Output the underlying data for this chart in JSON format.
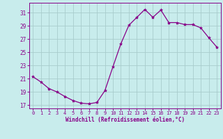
{
  "x": [
    0,
    1,
    2,
    3,
    4,
    5,
    6,
    7,
    8,
    9,
    10,
    11,
    12,
    13,
    14,
    15,
    16,
    17,
    18,
    19,
    20,
    21,
    22,
    23
  ],
  "y": [
    21.3,
    20.5,
    19.5,
    19.0,
    18.3,
    17.7,
    17.3,
    17.2,
    17.4,
    19.2,
    22.8,
    26.3,
    29.1,
    30.3,
    31.5,
    30.3,
    31.4,
    29.5,
    29.5,
    29.2,
    29.2,
    28.7,
    27.2,
    25.8
  ],
  "xlim": [
    -0.5,
    23.5
  ],
  "ylim": [
    16.5,
    32.5
  ],
  "yticks": [
    17,
    19,
    21,
    23,
    25,
    27,
    29,
    31
  ],
  "xticks": [
    0,
    1,
    2,
    3,
    4,
    5,
    6,
    7,
    8,
    9,
    10,
    11,
    12,
    13,
    14,
    15,
    16,
    17,
    18,
    19,
    20,
    21,
    22,
    23
  ],
  "xlabel": "Windchill (Refroidissement éolien,°C)",
  "line_color": "#880088",
  "marker": "*",
  "bg_color": "#c8ecec",
  "grid_color": "#a8cccc",
  "axis_color": "#880088",
  "tick_color": "#880088"
}
